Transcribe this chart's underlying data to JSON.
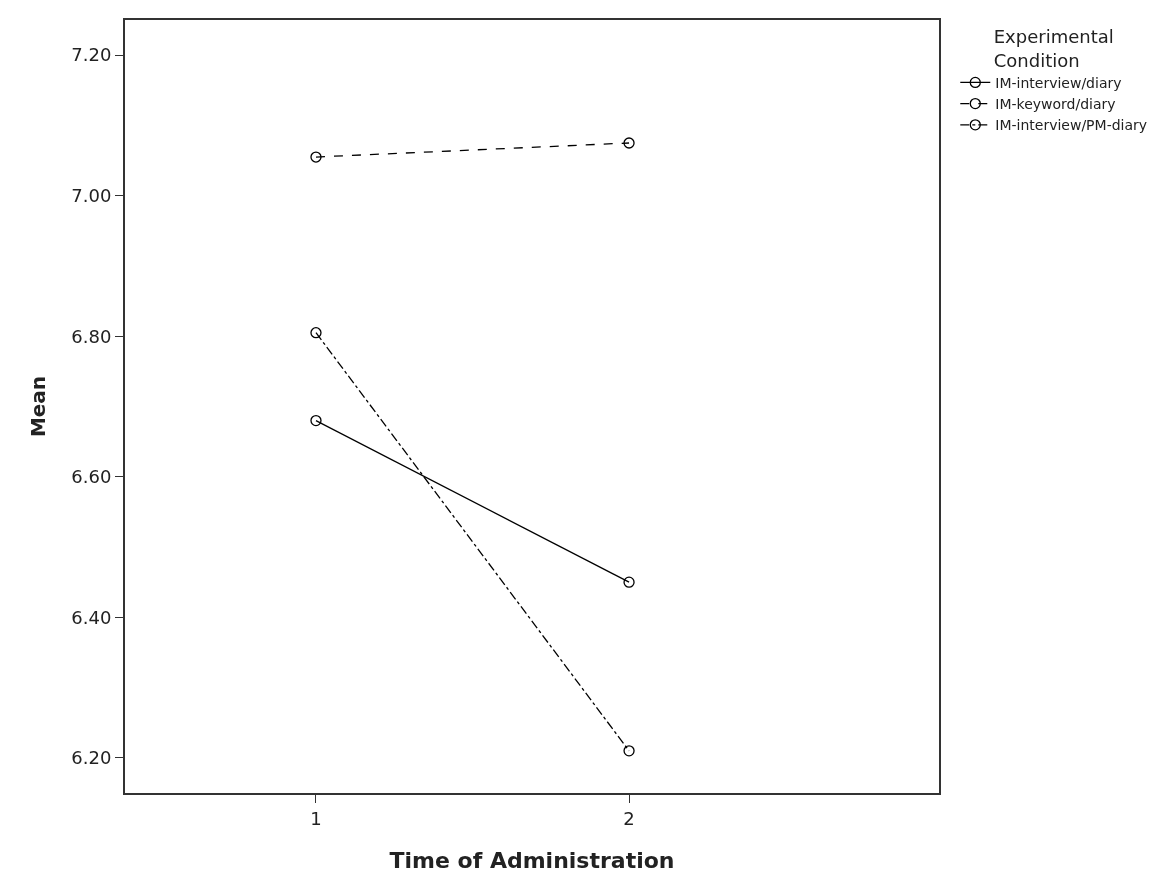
{
  "chart_data": {
    "type": "line",
    "xlabel": "Time of Administration",
    "ylabel": "Mean",
    "legend_title": "Experimental Condition",
    "legend": "top right",
    "grid": false,
    "marker": "circle",
    "categories": [
      "1",
      "2"
    ],
    "ylim": [
      6.15,
      7.25
    ],
    "yticks": [
      {
        "value": 6.2,
        "label": "6.20"
      },
      {
        "value": 6.4,
        "label": "6.40"
      },
      {
        "value": 6.6,
        "label": "6.60"
      },
      {
        "value": 6.8,
        "label": "6.80"
      },
      {
        "value": 7.0,
        "label": "7.00"
      },
      {
        "value": 7.2,
        "label": "7.20"
      }
    ],
    "series": [
      {
        "name": "IM-interview/diary",
        "color": "#000000",
        "line_style": "solid",
        "values": [
          6.68,
          6.45
        ]
      },
      {
        "name": "IM-keyword/diary",
        "color": "#000000",
        "line_style": "dashed",
        "values": [
          7.055,
          7.075
        ]
      },
      {
        "name": "IM-interview/PM-diary",
        "color": "#000000",
        "line_style": "dashdot",
        "values": [
          6.805,
          6.21
        ]
      }
    ]
  }
}
